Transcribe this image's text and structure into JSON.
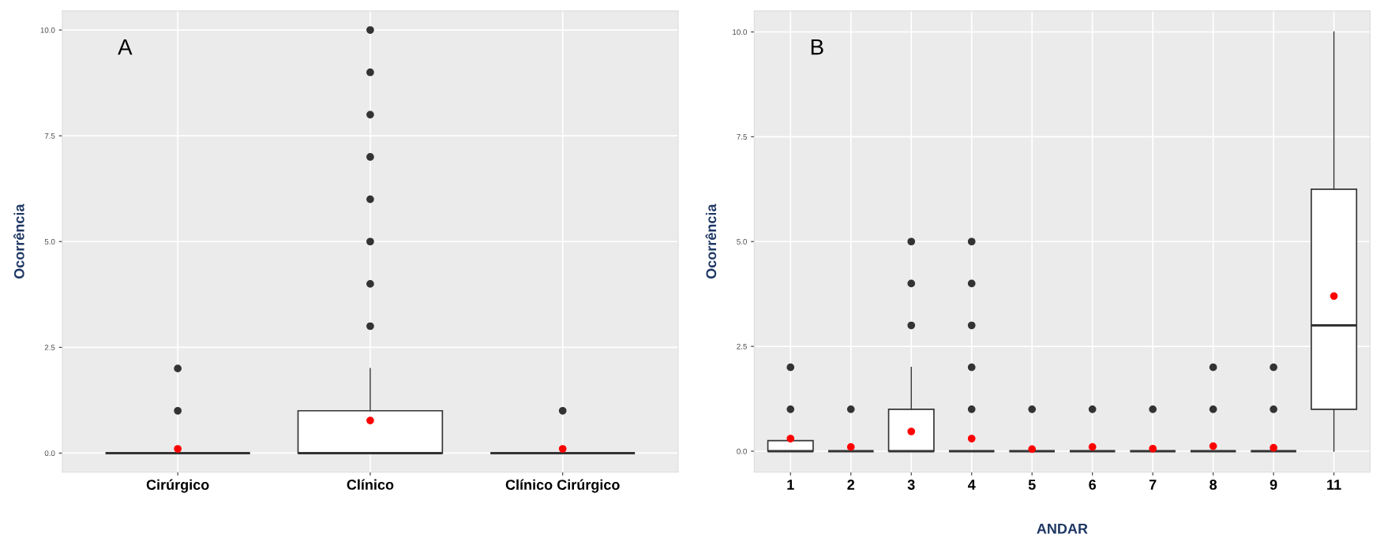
{
  "chart_data": [
    {
      "type": "box",
      "ylabel": "Ocorrência",
      "annotations": [
        "A"
      ],
      "categories": [
        "Cirúrgico",
        "Clínico",
        "Clínico Cirúrgico"
      ],
      "boxes": [
        {
          "low": 0,
          "q1": 0,
          "median": 0,
          "q3": 0,
          "high": 0,
          "mean": 0.1,
          "outliers": [
            1,
            2
          ]
        },
        {
          "low": 0,
          "q1": 0,
          "median": 0,
          "q3": 1,
          "high": 2,
          "mean": 0.77,
          "outliers": [
            3,
            4,
            5,
            6,
            7,
            8,
            9,
            10
          ]
        },
        {
          "low": 0,
          "q1": 0,
          "median": 0,
          "q3": 0,
          "high": 0,
          "mean": 0.1,
          "outliers": [
            1
          ]
        }
      ],
      "ylim": [
        -0.45,
        10.45
      ],
      "yticks": [
        {
          "value": 0,
          "label": "0.0"
        },
        {
          "value": 2.5,
          "label": "2.5"
        },
        {
          "value": 5,
          "label": "5.0"
        },
        {
          "value": 7.5,
          "label": "7.5"
        },
        {
          "value": 10,
          "label": "10.0"
        }
      ],
      "grid": true
    },
    {
      "type": "box",
      "xlabel": "ANDAR",
      "ylabel": "Ocorrência",
      "annotations": [
        "B"
      ],
      "categories": [
        "1",
        "2",
        "3",
        "4",
        "5",
        "6",
        "7",
        "8",
        "9",
        "11"
      ],
      "boxes": [
        {
          "low": 0,
          "q1": 0,
          "median": 0,
          "q3": 0.25,
          "high": 0.25,
          "mean": 0.3,
          "outliers": [
            1,
            2
          ]
        },
        {
          "low": 0,
          "q1": 0,
          "median": 0,
          "q3": 0,
          "high": 0,
          "mean": 0.1,
          "outliers": [
            1
          ]
        },
        {
          "low": 0,
          "q1": 0,
          "median": 0,
          "q3": 1,
          "high": 2,
          "mean": 0.47,
          "outliers": [
            3,
            4,
            5
          ]
        },
        {
          "low": 0,
          "q1": 0,
          "median": 0,
          "q3": 0,
          "high": 0,
          "mean": 0.3,
          "outliers": [
            1,
            2,
            3,
            4,
            5
          ]
        },
        {
          "low": 0,
          "q1": 0,
          "median": 0,
          "q3": 0,
          "high": 0,
          "mean": 0.05,
          "outliers": [
            1
          ]
        },
        {
          "low": 0,
          "q1": 0,
          "median": 0,
          "q3": 0,
          "high": 0,
          "mean": 0.1,
          "outliers": [
            1
          ]
        },
        {
          "low": 0,
          "q1": 0,
          "median": 0,
          "q3": 0,
          "high": 0,
          "mean": 0.06,
          "outliers": [
            1
          ]
        },
        {
          "low": 0,
          "q1": 0,
          "median": 0,
          "q3": 0,
          "high": 0,
          "mean": 0.12,
          "outliers": [
            1,
            2
          ]
        },
        {
          "low": 0,
          "q1": 0,
          "median": 0,
          "q3": 0,
          "high": 0,
          "mean": 0.08,
          "outliers": [
            1,
            2
          ]
        },
        {
          "low": 0,
          "q1": 1,
          "median": 3,
          "q3": 6.25,
          "high": 10,
          "mean": 3.7
        }
      ],
      "ylim": [
        -0.5,
        10.5
      ],
      "yticks": [
        {
          "value": 0,
          "label": "0.0"
        },
        {
          "value": 2.5,
          "label": "2.5"
        },
        {
          "value": 5,
          "label": "5.0"
        },
        {
          "value": 7.5,
          "label": "7.5"
        },
        {
          "value": 10,
          "label": "10.0"
        }
      ],
      "grid": true
    }
  ]
}
